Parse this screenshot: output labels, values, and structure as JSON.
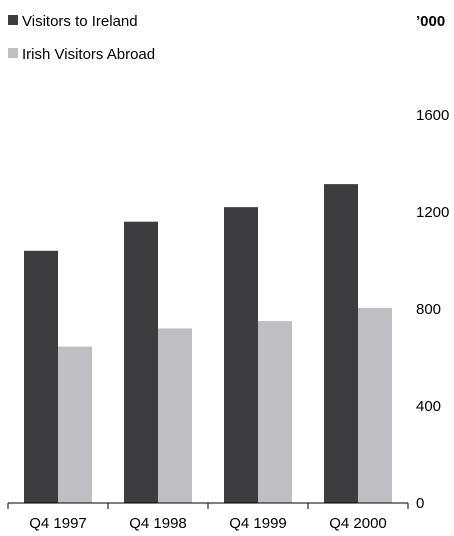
{
  "chart_data": {
    "type": "bar",
    "title": "",
    "xlabel": "",
    "ylabel": "",
    "unit_label": "’000",
    "categories": [
      "Q4 1997",
      "Q4 1998",
      "Q4 1999",
      "Q4 2000"
    ],
    "series": [
      {
        "name": "Visitors to Ireland",
        "color": "#3d3d3f",
        "values": [
          1040,
          1160,
          1220,
          1315
        ]
      },
      {
        "name": "Irish Visitors Abroad",
        "color": "#bfbfc3",
        "values": [
          645,
          720,
          750,
          805
        ]
      }
    ],
    "yticks": [
      0,
      400,
      800,
      1200,
      1600
    ],
    "ylim": [
      0,
      1800
    ],
    "grid": false,
    "legend": "top-left",
    "axis_position": "right"
  }
}
